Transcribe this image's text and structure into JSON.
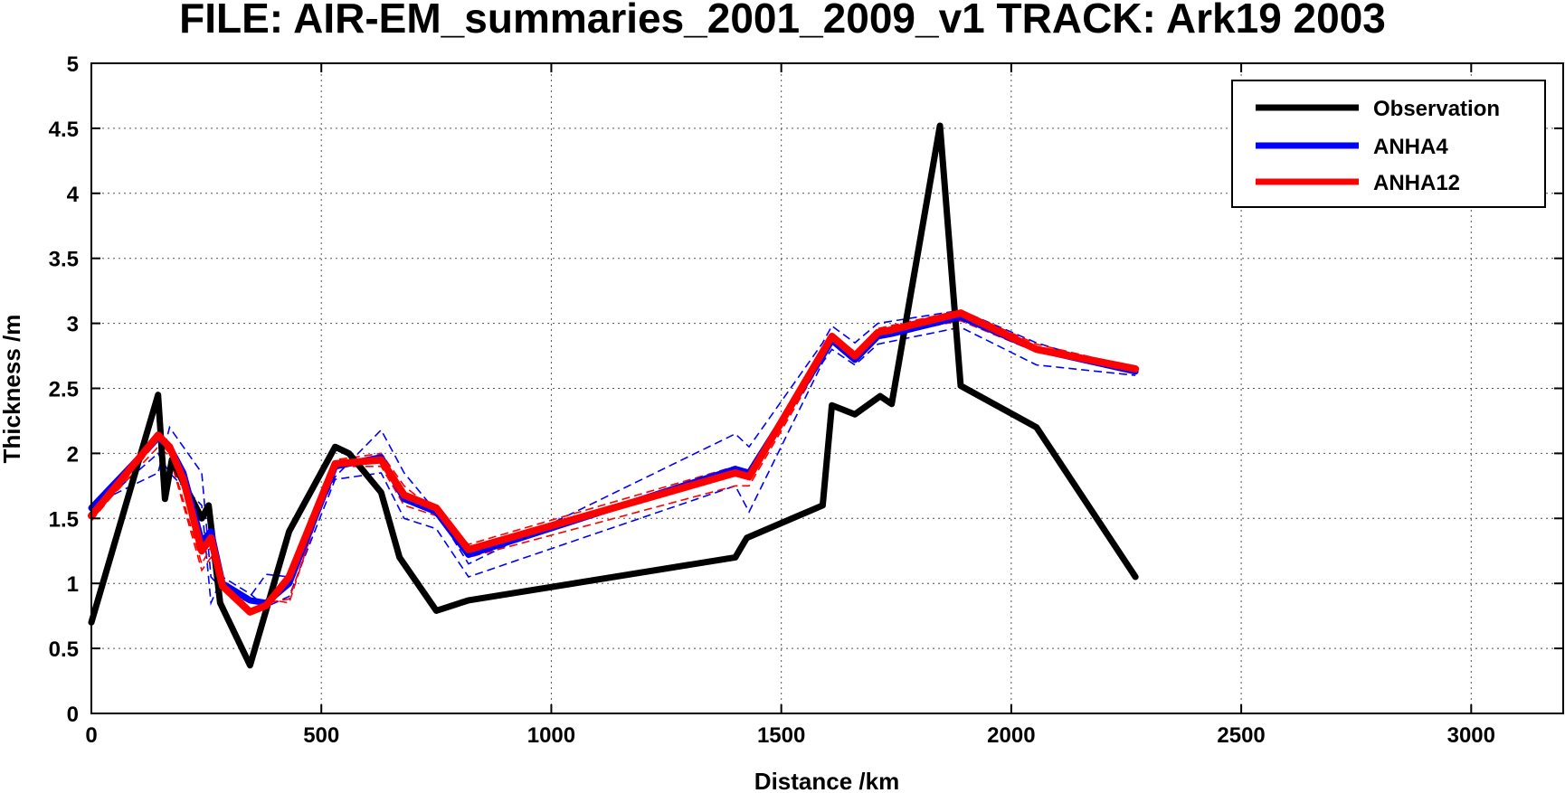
{
  "chart_data": {
    "type": "line",
    "title": "FILE: AIR-EM_summaries_2001_2009_v1 TRACK: Ark19 2003",
    "xlabel": "Distance /km",
    "ylabel": "Thickness /m",
    "xlim": [
      0,
      3200
    ],
    "ylim": [
      0,
      5
    ],
    "xticks": [
      0,
      500,
      1000,
      1500,
      2000,
      2500,
      3000
    ],
    "yticks": [
      0,
      0.5,
      1,
      1.5,
      2,
      2.5,
      3,
      3.5,
      4,
      4.5,
      5
    ],
    "ytick_labels": [
      "0",
      "0.5",
      "1",
      "1.5",
      "2",
      "2.5",
      "3",
      "3.5",
      "4",
      "4.5",
      "5"
    ],
    "grid": true,
    "legend_position": "top-right",
    "colors": {
      "observation": "#000000",
      "anha4": "#0000ff",
      "anha12": "#ff0000"
    },
    "series": [
      {
        "name": "Observation",
        "x": [
          0,
          145,
          160,
          175,
          240,
          255,
          280,
          345,
          430,
          530,
          560,
          630,
          670,
          750,
          820,
          1400,
          1425,
          1590,
          1610,
          1660,
          1715,
          1740,
          1845,
          1890,
          2055,
          2270
        ],
        "y": [
          0.7,
          2.45,
          1.65,
          1.95,
          1.5,
          1.6,
          0.85,
          0.37,
          1.4,
          2.05,
          2.0,
          1.7,
          1.2,
          0.79,
          0.87,
          1.2,
          1.35,
          1.6,
          2.37,
          2.3,
          2.44,
          2.38,
          4.52,
          2.52,
          2.2,
          1.05
        ]
      },
      {
        "name": "ANHA4",
        "x": [
          0,
          145,
          170,
          200,
          240,
          260,
          285,
          345,
          380,
          430,
          530,
          630,
          680,
          750,
          820,
          1400,
          1430,
          1590,
          1610,
          1660,
          1710,
          1740,
          1890,
          2055,
          2270
        ],
        "y": [
          1.58,
          2.12,
          2.05,
          1.85,
          1.32,
          1.4,
          1.0,
          0.87,
          0.85,
          1.0,
          1.9,
          1.97,
          1.65,
          1.55,
          1.22,
          1.88,
          1.85,
          2.75,
          2.87,
          2.72,
          2.9,
          2.92,
          3.05,
          2.8,
          2.63
        ]
      },
      {
        "name": "ANHA12",
        "x": [
          0,
          145,
          170,
          200,
          240,
          260,
          285,
          345,
          380,
          430,
          530,
          630,
          680,
          750,
          820,
          1400,
          1430,
          1590,
          1610,
          1660,
          1710,
          1740,
          1890,
          2055,
          2270
        ],
        "y": [
          1.52,
          2.14,
          2.05,
          1.8,
          1.25,
          1.35,
          0.98,
          0.78,
          0.83,
          1.05,
          1.92,
          1.95,
          1.68,
          1.58,
          1.26,
          1.85,
          1.82,
          2.78,
          2.9,
          2.75,
          2.93,
          2.95,
          3.08,
          2.8,
          2.65
        ]
      }
    ],
    "ensemble": [
      {
        "color": "blue",
        "x": [
          0,
          145,
          170,
          240,
          260,
          285,
          345,
          380,
          430,
          530,
          630,
          680,
          750,
          820,
          1400,
          1430,
          1590,
          1610,
          1660,
          1710,
          1890,
          2055,
          2270
        ],
        "y": [
          1.6,
          1.85,
          2.2,
          1.85,
          1.05,
          0.95,
          0.9,
          1.07,
          1.05,
          1.82,
          2.18,
          1.85,
          1.55,
          1.15,
          2.15,
          2.05,
          2.85,
          2.98,
          2.85,
          3.0,
          3.1,
          2.85,
          2.62
        ]
      },
      {
        "color": "blue",
        "x": [
          0,
          145,
          170,
          240,
          260,
          285,
          345,
          380,
          430,
          530,
          630,
          680,
          750,
          820,
          1400,
          1430,
          1590,
          1610,
          1660,
          1710,
          1890,
          2055,
          2270
        ],
        "y": [
          1.55,
          2.0,
          1.85,
          1.6,
          0.85,
          1.05,
          0.92,
          0.82,
          0.9,
          1.8,
          1.85,
          1.5,
          1.42,
          1.05,
          1.75,
          1.55,
          2.7,
          2.8,
          2.68,
          2.84,
          2.97,
          2.68,
          2.6
        ]
      },
      {
        "color": "red",
        "x": [
          0,
          145,
          170,
          240,
          260,
          285,
          345,
          380,
          430,
          530,
          630,
          680,
          750,
          820,
          1400,
          1430,
          1590,
          1610,
          1660,
          1710,
          1890,
          2055,
          2270
        ],
        "y": [
          1.5,
          2.05,
          1.98,
          1.1,
          1.2,
          0.95,
          0.85,
          0.88,
          0.85,
          1.95,
          2.0,
          1.75,
          1.55,
          1.3,
          1.9,
          1.8,
          2.8,
          2.92,
          2.78,
          2.96,
          3.1,
          2.84,
          2.66
        ]
      },
      {
        "color": "red",
        "x": [
          0,
          145,
          170,
          240,
          260,
          285,
          345,
          380,
          430,
          530,
          630,
          680,
          750,
          820,
          1400,
          1430,
          1590,
          1610,
          1660,
          1710,
          1890,
          2055,
          2270
        ],
        "y": [
          1.48,
          2.1,
          2.0,
          1.15,
          1.28,
          0.98,
          0.8,
          0.85,
          0.88,
          1.9,
          1.9,
          1.6,
          1.52,
          1.2,
          1.75,
          1.75,
          2.72,
          2.86,
          2.72,
          2.9,
          3.02,
          2.78,
          2.64
        ]
      }
    ]
  }
}
